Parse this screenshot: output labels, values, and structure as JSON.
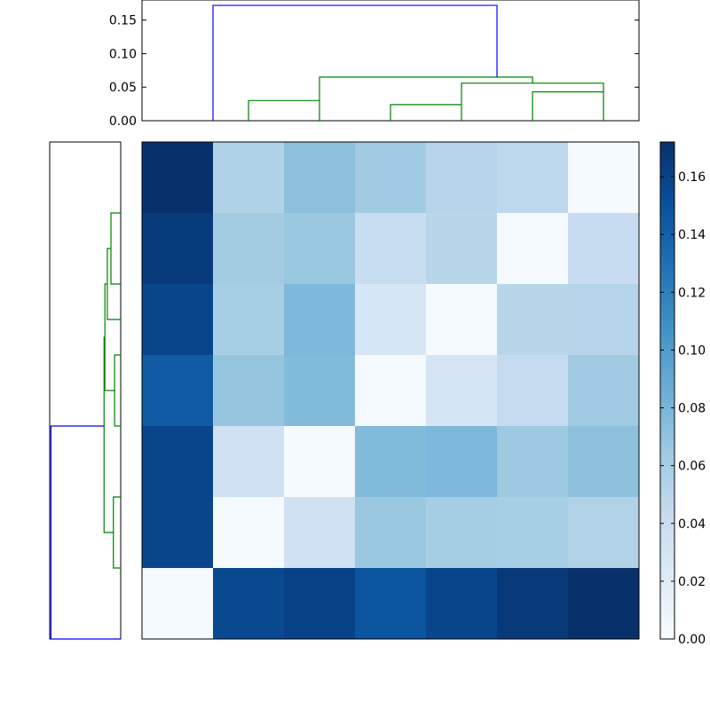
{
  "chart_data": [
    {
      "type": "dendrogram",
      "orientation": "top",
      "ylim": [
        0,
        0.18
      ],
      "yticks": [
        {
          "value": 0.0,
          "label": "0.00"
        },
        {
          "value": 0.05,
          "label": "0.05"
        },
        {
          "value": 0.1,
          "label": "0.10"
        },
        {
          "value": 0.15,
          "label": "0.15"
        }
      ],
      "leaf_count": 7,
      "links": [
        {
          "left": 1,
          "right": 2,
          "height": 0.03,
          "left_height": 0,
          "right_height": 0,
          "color": "#008000"
        },
        {
          "left": 3,
          "right": 4,
          "height": 0.024,
          "left_height": 0,
          "right_height": 0,
          "color": "#008000"
        },
        {
          "left": 5,
          "right": 6,
          "height": 0.043,
          "left_height": 0,
          "right_height": 0,
          "color": "#008000"
        },
        {
          "left": 4,
          "right": 6,
          "height": 0.056,
          "left_height": 0.024,
          "right_height": 0.043,
          "color": "#008000"
        },
        {
          "left": 2,
          "right": 5,
          "height": 0.065,
          "left_height": 0.03,
          "right_height": 0.056,
          "color": "#008000"
        },
        {
          "left": 0.5,
          "right": 4.5,
          "height": 0.172,
          "left_height": 0,
          "right_height": 0.065,
          "color": "#0000ff"
        }
      ]
    },
    {
      "type": "dendrogram",
      "orientation": "left",
      "xlim": [
        0.175,
        0
      ],
      "leaf_count": 7,
      "links": [
        {
          "top": 0.5,
          "bottom": 1.5,
          "height": 0.024,
          "left_height": 0,
          "right_height": 0,
          "color": "#008000"
        },
        {
          "top": 1,
          "bottom": 2,
          "height": 0.033,
          "left_height": 0.024,
          "right_height": 0,
          "color": "#008000"
        },
        {
          "top": 2.5,
          "bottom": 3.5,
          "height": 0.015,
          "left_height": 0,
          "right_height": 0,
          "color": "#008000"
        },
        {
          "top": 1.5,
          "bottom": 3,
          "height": 0.039,
          "left_height": 0.033,
          "right_height": 0.015,
          "color": "#008000"
        },
        {
          "top": 4.5,
          "bottom": 5.5,
          "height": 0.018,
          "left_height": 0,
          "right_height": 0,
          "color": "#008000"
        },
        {
          "top": 2.25,
          "bottom": 5,
          "height": 0.041,
          "left_height": 0.039,
          "right_height": 0.018,
          "color": "#008000"
        },
        {
          "top": 3.5,
          "bottom": 6.5,
          "height": 0.172,
          "left_height": 0.041,
          "right_height": 0,
          "color": "#0000ff"
        }
      ]
    },
    {
      "type": "heatmap",
      "colormap": "Blues",
      "vmin": 0,
      "vmax": 0.172,
      "values": [
        [
          0.172,
          0.055,
          0.072,
          0.063,
          0.052,
          0.048,
          0.002
        ],
        [
          0.165,
          0.062,
          0.066,
          0.04,
          0.05,
          0.002,
          0.043
        ],
        [
          0.158,
          0.06,
          0.078,
          0.028,
          0.002,
          0.05,
          0.052
        ],
        [
          0.144,
          0.068,
          0.076,
          0.002,
          0.03,
          0.043,
          0.064
        ],
        [
          0.158,
          0.035,
          0.002,
          0.076,
          0.078,
          0.065,
          0.072
        ],
        [
          0.158,
          0.002,
          0.035,
          0.066,
          0.061,
          0.06,
          0.054
        ],
        [
          0.002,
          0.156,
          0.16,
          0.148,
          0.158,
          0.166,
          0.172
        ]
      ]
    },
    {
      "type": "colorbar",
      "colormap": "Blues",
      "vmin": 0,
      "vmax": 0.172,
      "ticks": [
        {
          "value": 0.0,
          "label": "0.00"
        },
        {
          "value": 0.02,
          "label": "0.02"
        },
        {
          "value": 0.04,
          "label": "0.04"
        },
        {
          "value": 0.06,
          "label": "0.06"
        },
        {
          "value": 0.08,
          "label": "0.08"
        },
        {
          "value": 0.1,
          "label": "0.10"
        },
        {
          "value": 0.12,
          "label": "0.12"
        },
        {
          "value": 0.14,
          "label": "0.14"
        },
        {
          "value": 0.16,
          "label": "0.16"
        }
      ]
    }
  ]
}
